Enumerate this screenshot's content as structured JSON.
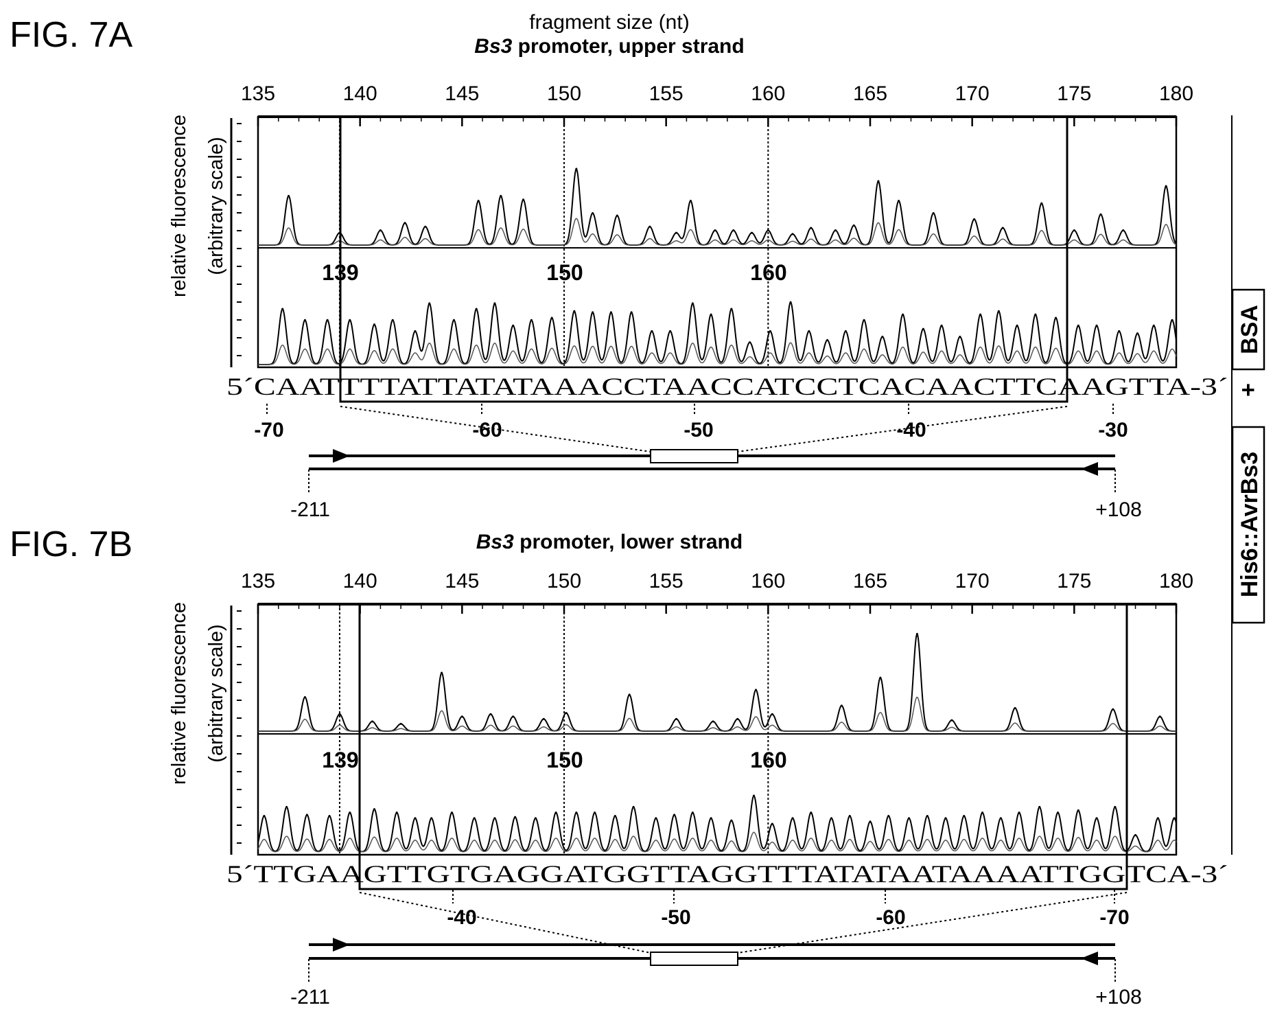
{
  "colors": {
    "ink": "#000000",
    "trace_gray": "#555555",
    "background": "#ffffff"
  },
  "figure_a": {
    "label": "FIG. 7A",
    "top_axis_label": "fragment size (nt)",
    "title_italic": "Bs3",
    "title_rest": " promoter, upper strand",
    "ylabel_line1": "relative fluorescence",
    "ylabel_line2": "(arbitrary scale)",
    "mark_labels": [
      "139",
      "150",
      "160"
    ],
    "seq_prefix": "5´",
    "seq_before": "CAAT",
    "seq_boxed": "TTTATTATATAAACCTAACCATCCTCACAACTTC",
    "seq_after": "AAGTTA",
    "seq_suffix": "-3´",
    "pos_labels": [
      "-70",
      "-60",
      "-50",
      "-40",
      "-30"
    ],
    "primer_left": "-211",
    "primer_right": "+108"
  },
  "figure_b": {
    "label": "FIG. 7B",
    "title_italic": "Bs3",
    "title_rest": " promoter, lower strand",
    "ylabel_line1": "relative fluorescence",
    "ylabel_line2": "(arbitrary scale)",
    "mark_labels": [
      "139",
      "150",
      "160"
    ],
    "seq_prefix": "5´",
    "seq_before": "TTGAA",
    "seq_boxed": "GTTGTGAGGATGGTTAGGTTTATATAATAAAATTGG",
    "seq_after": "TCA",
    "seq_suffix": "-3´",
    "pos_labels": [
      "-40",
      "-50",
      "-60",
      "-70"
    ],
    "primer_left": "-211",
    "primer_right": "+108"
  },
  "side_legend": {
    "plus": "+",
    "bsa": "BSA",
    "protein": "His6::AvrBs3"
  },
  "chart_data": [
    {
      "type": "line",
      "title": "Bs3 promoter, upper strand",
      "xlabel": "fragment size (nt)",
      "ylabel": "relative fluorescence (arbitrary scale)",
      "xlim": [
        135,
        180
      ],
      "x_ticks": [
        135,
        140,
        145,
        150,
        155,
        160,
        165,
        170,
        175,
        180
      ],
      "boxed_region": [
        139,
        175
      ],
      "marked_positions": [
        139,
        150,
        160
      ],
      "series": [
        {
          "name": "+ BSA",
          "peaks": [
            [
              136.5,
              0.4
            ],
            [
              139.0,
              0.1
            ],
            [
              141.0,
              0.12
            ],
            [
              142.2,
              0.18
            ],
            [
              143.2,
              0.15
            ],
            [
              145.8,
              0.36
            ],
            [
              146.9,
              0.4
            ],
            [
              148.0,
              0.37
            ],
            [
              150.6,
              0.62
            ],
            [
              151.4,
              0.26
            ],
            [
              152.6,
              0.24
            ],
            [
              154.2,
              0.15
            ],
            [
              155.5,
              0.1
            ],
            [
              156.2,
              0.36
            ],
            [
              157.4,
              0.12
            ],
            [
              158.3,
              0.12
            ],
            [
              159.2,
              0.1
            ],
            [
              160.0,
              0.12
            ],
            [
              161.2,
              0.09
            ],
            [
              162.1,
              0.14
            ],
            [
              163.3,
              0.12
            ],
            [
              164.2,
              0.16
            ],
            [
              165.4,
              0.52
            ],
            [
              166.4,
              0.36
            ],
            [
              168.1,
              0.26
            ],
            [
              170.1,
              0.21
            ],
            [
              171.5,
              0.14
            ],
            [
              173.4,
              0.34
            ],
            [
              175.0,
              0.12
            ],
            [
              176.3,
              0.25
            ],
            [
              177.4,
              0.12
            ],
            [
              179.5,
              0.48
            ]
          ]
        },
        {
          "name": "+ His6::AvrBs3",
          "peaks": [
            [
              136.2,
              0.5
            ],
            [
              137.3,
              0.4
            ],
            [
              138.4,
              0.4
            ],
            [
              139.5,
              0.4
            ],
            [
              140.7,
              0.36
            ],
            [
              141.6,
              0.4
            ],
            [
              142.7,
              0.3
            ],
            [
              143.4,
              0.55
            ],
            [
              144.6,
              0.4
            ],
            [
              145.7,
              0.5
            ],
            [
              146.6,
              0.55
            ],
            [
              147.5,
              0.35
            ],
            [
              148.4,
              0.4
            ],
            [
              149.4,
              0.42
            ],
            [
              150.5,
              0.48
            ],
            [
              151.4,
              0.47
            ],
            [
              152.3,
              0.47
            ],
            [
              153.3,
              0.47
            ],
            [
              154.3,
              0.3
            ],
            [
              155.2,
              0.3
            ],
            [
              156.3,
              0.55
            ],
            [
              157.2,
              0.45
            ],
            [
              158.2,
              0.5
            ],
            [
              159.1,
              0.2
            ],
            [
              160.1,
              0.3
            ],
            [
              161.1,
              0.56
            ],
            [
              162.0,
              0.3
            ],
            [
              162.9,
              0.22
            ],
            [
              163.8,
              0.3
            ],
            [
              164.7,
              0.4
            ],
            [
              165.6,
              0.25
            ],
            [
              166.6,
              0.45
            ],
            [
              167.6,
              0.32
            ],
            [
              168.5,
              0.35
            ],
            [
              169.4,
              0.25
            ],
            [
              170.4,
              0.45
            ],
            [
              171.3,
              0.48
            ],
            [
              172.2,
              0.35
            ],
            [
              173.1,
              0.45
            ],
            [
              174.1,
              0.42
            ],
            [
              175.2,
              0.35
            ],
            [
              176.1,
              0.35
            ],
            [
              177.2,
              0.3
            ],
            [
              178.1,
              0.28
            ],
            [
              178.9,
              0.35
            ],
            [
              179.8,
              0.4
            ]
          ]
        }
      ]
    },
    {
      "type": "line",
      "title": "Bs3 promoter, lower strand",
      "xlabel": "",
      "ylabel": "relative fluorescence (arbitrary scale)",
      "xlim": [
        135,
        180
      ],
      "x_ticks": [
        135,
        140,
        145,
        150,
        155,
        160,
        165,
        170,
        175,
        180
      ],
      "boxed_region": [
        140,
        177.7
      ],
      "marked_positions": [
        139,
        150,
        160
      ],
      "series": [
        {
          "name": "+ BSA",
          "peaks": [
            [
              137.3,
              0.28
            ],
            [
              139.0,
              0.14
            ],
            [
              140.6,
              0.08
            ],
            [
              142.0,
              0.06
            ],
            [
              144.0,
              0.48
            ],
            [
              145.0,
              0.12
            ],
            [
              146.4,
              0.14
            ],
            [
              147.5,
              0.12
            ],
            [
              149.0,
              0.1
            ],
            [
              150.1,
              0.15
            ],
            [
              153.2,
              0.3
            ],
            [
              155.5,
              0.1
            ],
            [
              157.3,
              0.08
            ],
            [
              158.5,
              0.1
            ],
            [
              159.4,
              0.34
            ],
            [
              160.2,
              0.14
            ],
            [
              163.6,
              0.21
            ],
            [
              165.5,
              0.44
            ],
            [
              167.3,
              0.8
            ],
            [
              169.0,
              0.09
            ],
            [
              172.1,
              0.19
            ],
            [
              176.9,
              0.18
            ],
            [
              179.2,
              0.12
            ]
          ]
        },
        {
          "name": "+ His6::AvrBs3",
          "peaks": [
            [
              135.3,
              0.32
            ],
            [
              136.4,
              0.4
            ],
            [
              137.4,
              0.33
            ],
            [
              138.5,
              0.32
            ],
            [
              139.5,
              0.35
            ],
            [
              140.7,
              0.38
            ],
            [
              141.8,
              0.35
            ],
            [
              142.7,
              0.3
            ],
            [
              143.5,
              0.3
            ],
            [
              144.5,
              0.35
            ],
            [
              145.6,
              0.3
            ],
            [
              146.6,
              0.3
            ],
            [
              147.6,
              0.31
            ],
            [
              148.6,
              0.3
            ],
            [
              149.6,
              0.35
            ],
            [
              150.6,
              0.35
            ],
            [
              151.5,
              0.35
            ],
            [
              152.5,
              0.32
            ],
            [
              153.4,
              0.4
            ],
            [
              154.5,
              0.3
            ],
            [
              155.4,
              0.33
            ],
            [
              156.3,
              0.35
            ],
            [
              157.2,
              0.3
            ],
            [
              158.2,
              0.28
            ],
            [
              159.3,
              0.5
            ],
            [
              160.2,
              0.25
            ],
            [
              161.2,
              0.3
            ],
            [
              162.1,
              0.35
            ],
            [
              163.1,
              0.3
            ],
            [
              164.0,
              0.32
            ],
            [
              165.0,
              0.27
            ],
            [
              165.9,
              0.32
            ],
            [
              166.9,
              0.3
            ],
            [
              167.8,
              0.32
            ],
            [
              168.7,
              0.3
            ],
            [
              169.6,
              0.32
            ],
            [
              170.5,
              0.35
            ],
            [
              171.4,
              0.3
            ],
            [
              172.3,
              0.35
            ],
            [
              173.3,
              0.4
            ],
            [
              174.2,
              0.35
            ],
            [
              175.2,
              0.37
            ],
            [
              176.1,
              0.3
            ],
            [
              177.0,
              0.4
            ],
            [
              178.0,
              0.15
            ],
            [
              179.1,
              0.3
            ],
            [
              179.9,
              0.3
            ]
          ]
        }
      ]
    }
  ]
}
